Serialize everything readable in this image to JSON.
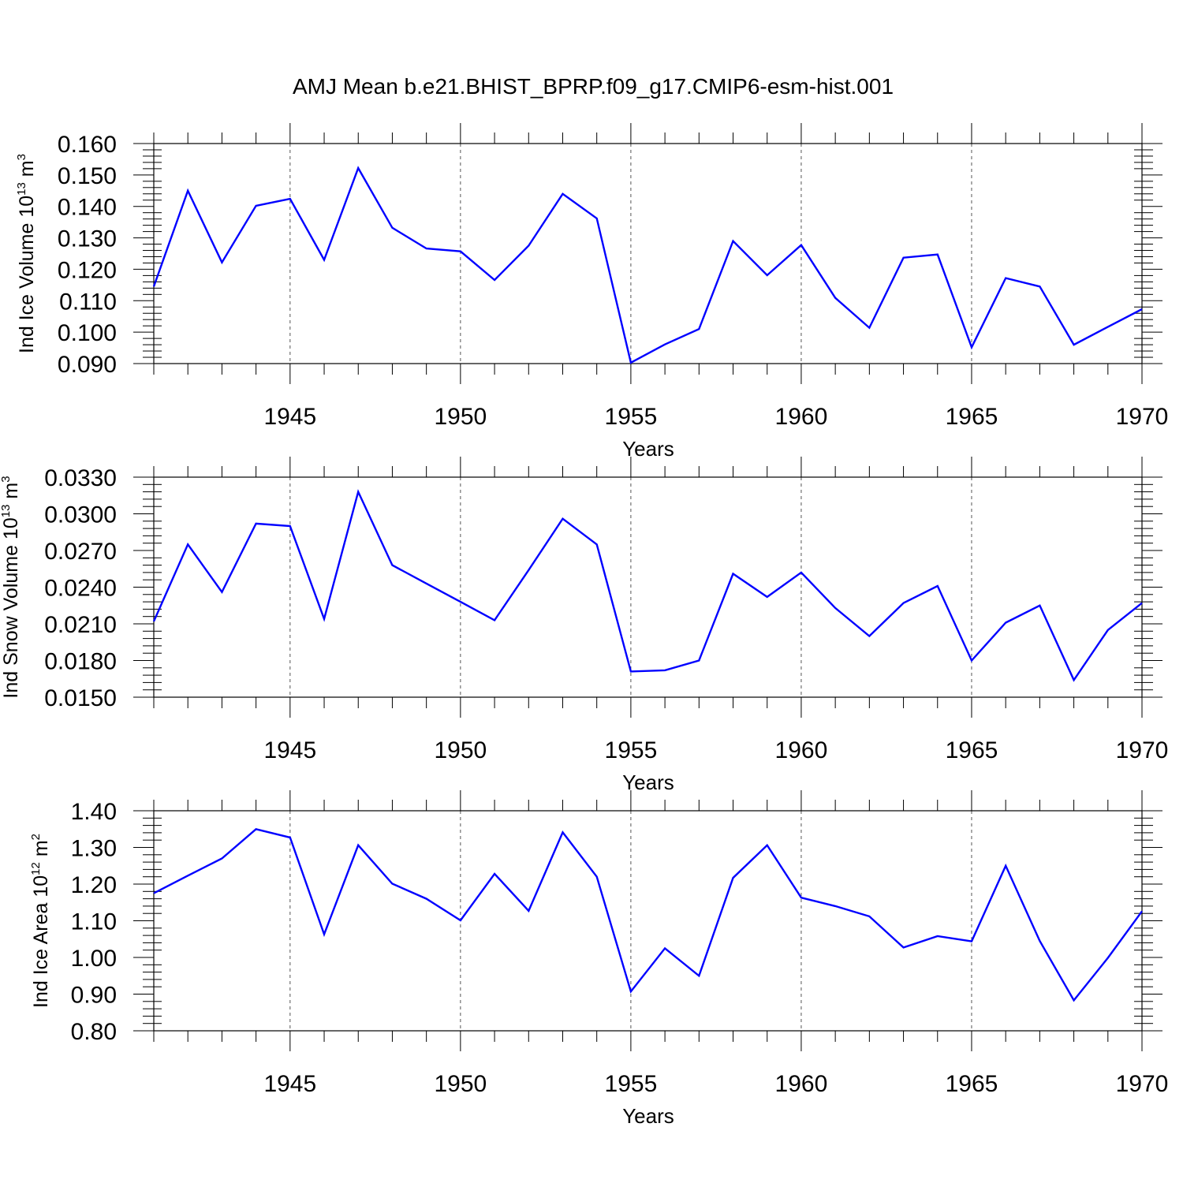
{
  "title": "AMJ Mean b.e21.BHIST_BPRP.f09_g17.CMIP6-esm-hist.001",
  "colors": {
    "line": "#0000ff",
    "axis": "#000000",
    "grid": "#555555"
  },
  "chart_data": [
    {
      "type": "line",
      "ylabel_text": "Ind Ice Volume 10",
      "ylabel_exp": "13",
      "ylabel_unit": " m",
      "ylabel_unit_exp": "3",
      "xlabel": "Years",
      "xlim": [
        1941,
        1970
      ],
      "ylim": [
        0.09,
        0.16
      ],
      "x_ticks": [
        "1945",
        "1950",
        "1955",
        "1960",
        "1965",
        "1970"
      ],
      "y_ticks": [
        "0.090",
        "0.100",
        "0.110",
        "0.120",
        "0.130",
        "0.140",
        "0.150",
        "0.160"
      ],
      "y_tick_values": [
        0.09,
        0.1,
        0.11,
        0.12,
        0.13,
        0.14,
        0.15,
        0.16
      ],
      "grid": "vertical dashed lines at major x ticks",
      "x": [
        1941,
        1942,
        1943,
        1944,
        1945,
        1946,
        1947,
        1948,
        1949,
        1950,
        1951,
        1952,
        1953,
        1954,
        1955,
        1956,
        1957,
        1958,
        1959,
        1960,
        1961,
        1962,
        1963,
        1964,
        1965,
        1966,
        1967,
        1968,
        1969,
        1970
      ],
      "series": [
        {
          "values": [
            0.1145,
            0.145,
            0.1222,
            0.1402,
            0.1424,
            0.123,
            0.1522,
            0.1332,
            0.1266,
            0.1257,
            0.1166,
            0.1275,
            0.144,
            0.1362,
            0.0903,
            0.0961,
            0.101,
            0.129,
            0.1181,
            0.1277,
            0.1109,
            0.1014,
            0.1237,
            0.1247,
            0.0952,
            0.1172,
            0.1145,
            0.096,
            0.1017,
            0.1073
          ]
        }
      ]
    },
    {
      "type": "line",
      "ylabel_text": "Ind Snow Volume 10",
      "ylabel_exp": "13",
      "ylabel_unit": " m",
      "ylabel_unit_exp": "3",
      "xlabel": "Years",
      "xlim": [
        1941,
        1970
      ],
      "ylim": [
        0.015,
        0.033
      ],
      "x_ticks": [
        "1945",
        "1950",
        "1955",
        "1960",
        "1965",
        "1970"
      ],
      "y_ticks": [
        "0.0150",
        "0.0180",
        "0.0210",
        "0.0240",
        "0.0270",
        "0.0300",
        "0.0330"
      ],
      "y_tick_values": [
        0.015,
        0.018,
        0.021,
        0.024,
        0.027,
        0.03,
        0.033
      ],
      "grid": "vertical dashed lines at major x ticks",
      "x": [
        1941,
        1942,
        1943,
        1944,
        1945,
        1946,
        1947,
        1948,
        1949,
        1950,
        1951,
        1952,
        1953,
        1954,
        1955,
        1956,
        1957,
        1958,
        1959,
        1960,
        1961,
        1962,
        1963,
        1964,
        1965,
        1966,
        1967,
        1968,
        1969,
        1970
      ],
      "series": [
        {
          "values": [
            0.0212,
            0.0275,
            0.0236,
            0.0292,
            0.029,
            0.0214,
            0.0318,
            0.0258,
            0.0243,
            0.0228,
            0.0213,
            0.0254,
            0.0296,
            0.0275,
            0.0171,
            0.0172,
            0.018,
            0.0251,
            0.0232,
            0.0252,
            0.0223,
            0.02,
            0.0227,
            0.0241,
            0.018,
            0.0211,
            0.0225,
            0.0164,
            0.0205,
            0.0227
          ]
        }
      ]
    },
    {
      "type": "line",
      "ylabel_text": "Ind Ice Area 10",
      "ylabel_exp": "12",
      "ylabel_unit": " m",
      "ylabel_unit_exp": "2",
      "xlabel": "Years",
      "xlim": [
        1941,
        1970
      ],
      "ylim": [
        0.8,
        1.4
      ],
      "x_ticks": [
        "1945",
        "1950",
        "1955",
        "1960",
        "1965",
        "1970"
      ],
      "y_ticks": [
        "0.80",
        "0.90",
        "1.00",
        "1.10",
        "1.20",
        "1.30",
        "1.40"
      ],
      "y_tick_values": [
        0.8,
        0.9,
        1.0,
        1.1,
        1.2,
        1.3,
        1.4
      ],
      "grid": "vertical dashed lines at major x ticks",
      "x": [
        1941,
        1942,
        1943,
        1944,
        1945,
        1946,
        1947,
        1948,
        1949,
        1950,
        1951,
        1952,
        1953,
        1954,
        1955,
        1956,
        1957,
        1958,
        1959,
        1960,
        1961,
        1962,
        1963,
        1964,
        1965,
        1966,
        1967,
        1968,
        1969,
        1970
      ],
      "series": [
        {
          "values": [
            1.175,
            1.223,
            1.27,
            1.35,
            1.327,
            1.063,
            1.306,
            1.201,
            1.16,
            1.101,
            1.228,
            1.127,
            1.341,
            1.22,
            0.907,
            1.025,
            0.95,
            1.217,
            1.306,
            1.163,
            1.14,
            1.112,
            1.027,
            1.058,
            1.044,
            1.25,
            1.045,
            0.883,
            0.999,
            1.126
          ]
        }
      ]
    }
  ]
}
